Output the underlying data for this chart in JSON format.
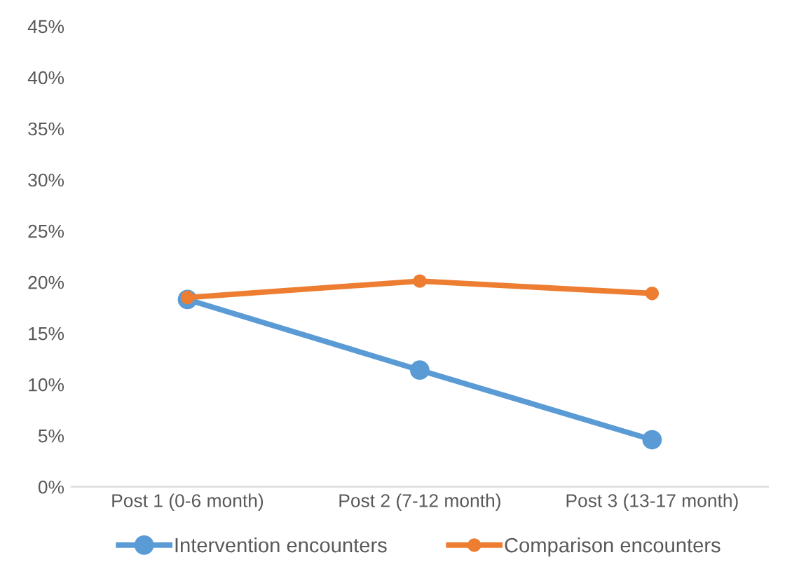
{
  "chart_data": {
    "type": "line",
    "categories": [
      "Post 1 (0-6 month)",
      "Post 2 (7-12 month)",
      "Post 3 (13-17 month)"
    ],
    "series": [
      {
        "name": "Intervention encounters",
        "color": "#5b9bd5",
        "values": [
          18.3,
          11.4,
          4.6
        ]
      },
      {
        "name": "Comparison encounters",
        "color": "#ed7d31",
        "values": [
          18.5,
          20.1,
          18.9
        ]
      }
    ],
    "ylim": [
      0,
      45
    ],
    "yticks": [
      {
        "value": 0,
        "label": "0%"
      },
      {
        "value": 5,
        "label": "5%"
      },
      {
        "value": 10,
        "label": "10%"
      },
      {
        "value": 15,
        "label": "15%"
      },
      {
        "value": 20,
        "label": "20%"
      },
      {
        "value": 25,
        "label": "25%"
      },
      {
        "value": 30,
        "label": "30%"
      },
      {
        "value": 35,
        "label": "35%"
      },
      {
        "value": 40,
        "label": "40%"
      },
      {
        "value": 45,
        "label": "45%"
      }
    ],
    "grid": false,
    "legend": "bottom",
    "marker": "circle",
    "line_style": "solid"
  }
}
